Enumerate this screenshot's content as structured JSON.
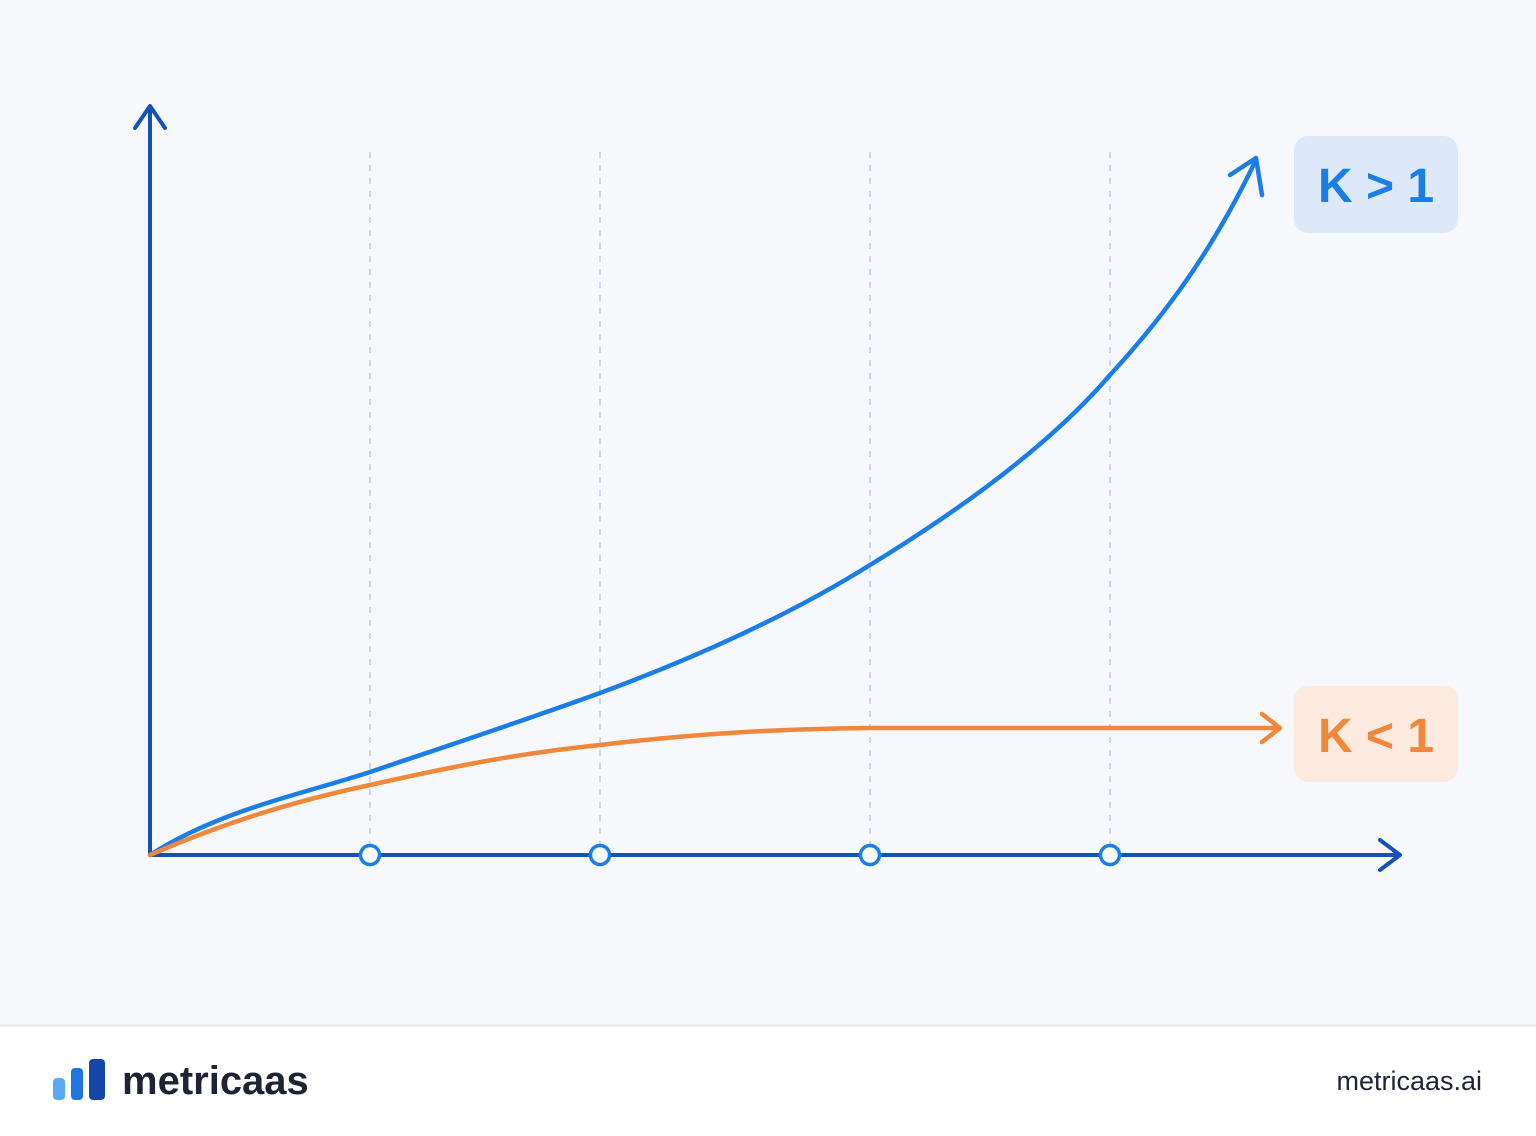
{
  "labels": {
    "high": "K > 1",
    "low": "K < 1"
  },
  "footer": {
    "brand": "metricaas",
    "url": "metricaas.ai"
  }
}
